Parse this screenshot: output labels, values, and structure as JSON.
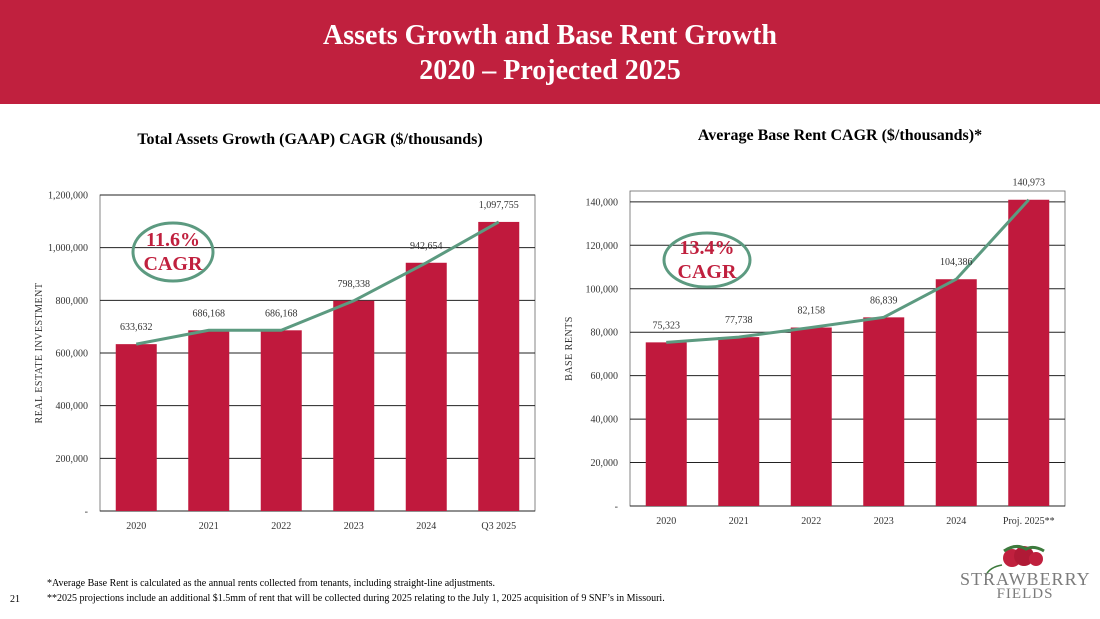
{
  "header": {
    "title_line1": "Assets Growth and Base Rent Growth",
    "title_line2": "2020 – Projected 2025"
  },
  "colors": {
    "brand": "#c0203e",
    "bar": "#c0193d",
    "trend": "#5c9a80",
    "grid": "#222222"
  },
  "chart_data": [
    {
      "type": "bar",
      "title": "Total Assets Growth (GAAP) CAGR ($/thousands)",
      "categories": [
        "2020",
        "2021",
        "2022",
        "2023",
        "2024",
        "Q3 2025"
      ],
      "values": [
        633632,
        686168,
        686168,
        798338,
        942654,
        1097755
      ],
      "value_labels": [
        "633,632",
        "686,168",
        "686,168",
        "798,338",
        "942,654",
        "1,097,755"
      ],
      "trend_line": true,
      "ylabel": "REAL ESTATE INVESTMENT",
      "ylim": [
        0,
        1200000
      ],
      "yticks": [
        0,
        200000,
        400000,
        600000,
        800000,
        1000000,
        1200000
      ],
      "ytick_labels": [
        "-",
        "200,000",
        "400,000",
        "600,000",
        "800,000",
        "1,000,000",
        "1,200,000"
      ],
      "annotation": {
        "value": "11.6%",
        "label": "CAGR"
      }
    },
    {
      "type": "bar",
      "title": "Average Base Rent CAGR ($/thousands)*",
      "categories": [
        "2020",
        "2021",
        "2022",
        "2023",
        "2024",
        "Proj. 2025**"
      ],
      "values": [
        75323,
        77738,
        82158,
        86839,
        104386,
        140973
      ],
      "value_labels": [
        "75,323",
        "77,738",
        "82,158",
        "86,839",
        "104,386",
        "140,973"
      ],
      "trend_line": true,
      "ylabel": "BASE RENTS",
      "ylim": [
        0,
        145000
      ],
      "yticks": [
        0,
        20000,
        40000,
        60000,
        80000,
        100000,
        120000,
        140000
      ],
      "ytick_labels": [
        "-",
        "20,000",
        "40,000",
        "60,000",
        "80,000",
        "100,000",
        "120,000",
        "140,000"
      ],
      "annotation": {
        "value": "13.4%",
        "label": "CAGR"
      }
    }
  ],
  "footnotes": [
    "*Average Base Rent is calculated as the annual rents collected from tenants, including straight-line adjustments.",
    "**2025 projections include an additional $1.5mm of rent that will be collected during 2025 relating to the July 1, 2025 acquisition of 9 SNF’s in Missouri."
  ],
  "page_number": "21",
  "logo": {
    "line1": "STRAWBERRY",
    "line2": "FIELDS"
  }
}
